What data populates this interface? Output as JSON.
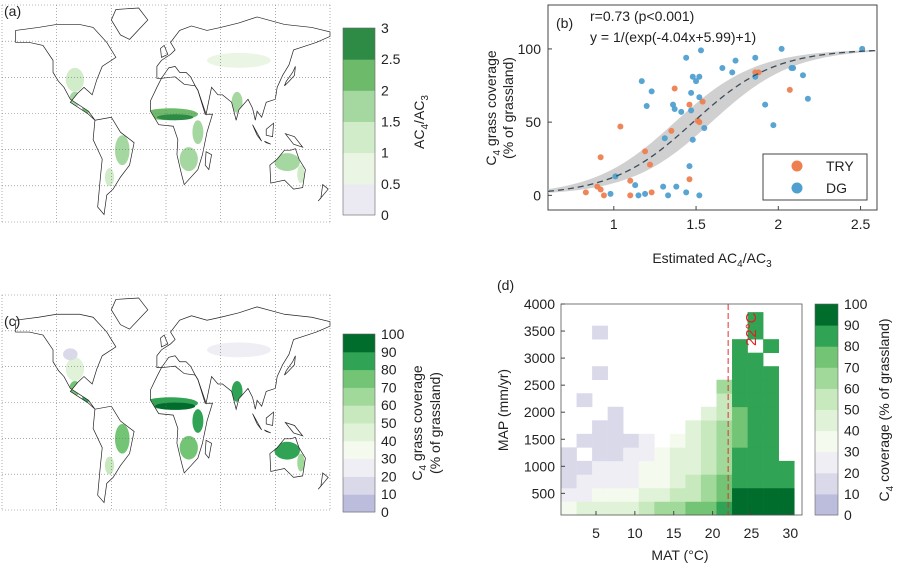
{
  "panels": {
    "a": {
      "tag": "(a)",
      "colorbar_label": {
        "p1": "AC",
        "s1": "4",
        "p2": "/AC",
        "s2": "3"
      }
    },
    "b": {
      "tag": "(b)",
      "stat": "r=0.73 (p<0.001)",
      "equation": "y = 1/(exp(-4.04x+5.99)+1)"
    },
    "c": {
      "tag": "(c)",
      "colorbar_label_1": {
        "pre": "C",
        "sub": "4",
        "post": " grass coverage"
      },
      "colorbar_label_2": "(% of grassland)"
    },
    "d": {
      "tag": "(d)",
      "threshold_label": "22°C"
    }
  },
  "chart_data": [
    {
      "id": "a",
      "type": "heatmap",
      "title": "",
      "description_kind": "map",
      "colorbar": {
        "ticks": [
          "0",
          "0.5",
          "1",
          "1.5",
          "2",
          "2.5",
          "3"
        ],
        "range": [
          0,
          3
        ],
        "colors": [
          "#ebeaf3",
          "#eaf5e4",
          "#d0ecc8",
          "#a5d8a0",
          "#6dbb6a",
          "#2e8b46"
        ]
      }
    },
    {
      "id": "b",
      "type": "scatter",
      "xlabel": {
        "p1": "Estimated AC",
        "s1": "4",
        "p2": "/AC",
        "s2": "3"
      },
      "ylabel_1": {
        "pre": "C",
        "sub": "4",
        "post": " grass coverage"
      },
      "ylabel_2": "(% of grassland)",
      "xlim": [
        0.6,
        2.6
      ],
      "ylim": [
        -10,
        130
      ],
      "xticks": [
        "1",
        "1.5",
        "2",
        "2.5"
      ],
      "xtick_values": [
        1,
        1.5,
        2,
        2.5
      ],
      "yticks": [
        "0",
        "50",
        "100"
      ],
      "ytick_values": [
        0,
        50,
        100
      ],
      "legend": {
        "placement": "bottom-right",
        "entries": [
          "TRY",
          "DG"
        ]
      },
      "fit": {
        "a": -4.04,
        "b": 5.99,
        "scale": 100
      },
      "series": [
        {
          "name": "TRY",
          "color": "#ee8050",
          "points": [
            [
              0.83,
              2
            ],
            [
              0.92,
              26
            ],
            [
              0.9,
              6
            ],
            [
              0.92,
              4
            ],
            [
              0.94,
              0
            ],
            [
              1.04,
              47
            ],
            [
              1.1,
              0
            ],
            [
              1.1,
              10
            ],
            [
              1.19,
              30
            ],
            [
              1.22,
              21
            ],
            [
              1.23,
              2
            ],
            [
              1.35,
              44
            ],
            [
              1.37,
              73
            ],
            [
              1.46,
              62
            ],
            [
              1.46,
              11
            ],
            [
              1.51,
              51
            ],
            [
              1.52,
              50
            ],
            [
              1.54,
              64
            ],
            [
              1.86,
              84
            ],
            [
              1.88,
              84
            ],
            [
              2.07,
              72
            ]
          ]
        },
        {
          "name": "DG",
          "color": "#4f9fd0",
          "points": [
            [
              0.98,
              1
            ],
            [
              1.01,
              13
            ],
            [
              1.13,
              7
            ],
            [
              1.15,
              0
            ],
            [
              1.17,
              78
            ],
            [
              1.19,
              1
            ],
            [
              1.2,
              61
            ],
            [
              1.23,
              71
            ],
            [
              1.3,
              6
            ],
            [
              1.31,
              39
            ],
            [
              1.33,
              0
            ],
            [
              1.38,
              6
            ],
            [
              1.37,
              59
            ],
            [
              1.36,
              62
            ],
            [
              1.41,
              57
            ],
            [
              1.44,
              2
            ],
            [
              1.44,
              94
            ],
            [
              1.46,
              20
            ],
            [
              1.47,
              58
            ],
            [
              1.47,
              70
            ],
            [
              1.48,
              81
            ],
            [
              1.48,
              38
            ],
            [
              1.5,
              78
            ],
            [
              1.52,
              81
            ],
            [
              1.52,
              0
            ],
            [
              1.52,
              67
            ],
            [
              1.53,
              99
            ],
            [
              1.55,
              46
            ],
            [
              1.66,
              87
            ],
            [
              1.72,
              84
            ],
            [
              1.74,
              92
            ],
            [
              1.86,
              94
            ],
            [
              1.86,
              81
            ],
            [
              1.92,
              62
            ],
            [
              1.97,
              48
            ],
            [
              2.02,
              100
            ],
            [
              2.08,
              87
            ],
            [
              2.09,
              87
            ],
            [
              2.15,
              82
            ],
            [
              2.18,
              66
            ],
            [
              2.51,
              100
            ]
          ]
        }
      ]
    },
    {
      "id": "c",
      "type": "heatmap",
      "description_kind": "map",
      "colorbar": {
        "ticks": [
          "0",
          "10",
          "20",
          "30",
          "40",
          "50",
          "60",
          "70",
          "80",
          "90",
          "100"
        ],
        "range": [
          0,
          100
        ],
        "colors": [
          "#bcbddc",
          "#d9d9ea",
          "#eeeef4",
          "#f5faef",
          "#e0f2d8",
          "#c7e9bd",
          "#a1d99b",
          "#74c476",
          "#31a354",
          "#006d2c"
        ]
      }
    },
    {
      "id": "d",
      "type": "heatmap",
      "xlabel": "MAT (°C)",
      "ylabel": "MAP (mm/yr)",
      "xlim": [
        0.5,
        31.5
      ],
      "ylim": [
        100,
        4000
      ],
      "xticks": [
        "5",
        "10",
        "15",
        "20",
        "25",
        "30"
      ],
      "xtick_values": [
        5,
        10,
        15,
        20,
        25,
        30
      ],
      "yticks": [
        "500",
        "1000",
        "1500",
        "2000",
        "2500",
        "3000",
        "3500",
        "4000"
      ],
      "ytick_values": [
        500,
        1000,
        1500,
        2000,
        2500,
        3000,
        3500,
        4000
      ],
      "threshold_x": 22,
      "colorbar": {
        "label": {
          "pre": "C",
          "sub": "4",
          "post": " coverage (% of grassland)"
        },
        "ticks": [
          "0",
          "10",
          "20",
          "30",
          "40",
          "50",
          "60",
          "70",
          "80",
          "90",
          "100"
        ],
        "range": [
          0,
          100
        ]
      },
      "x_bins": {
        "start": 0.5,
        "step": 2
      },
      "y_bins": {
        "start": 100,
        "step": 250
      },
      "values": [
        [
          30,
          45,
          45,
          40,
          40,
          50,
          60,
          65,
          70,
          75,
          85,
          95,
          95,
          98,
          98,
          null
        ],
        [
          20,
          25,
          30,
          30,
          35,
          40,
          45,
          50,
          55,
          65,
          75,
          90,
          90,
          95,
          95,
          null
        ],
        [
          15,
          20,
          25,
          25,
          25,
          30,
          35,
          40,
          50,
          60,
          70,
          85,
          85,
          88,
          85,
          null
        ],
        [
          15,
          15,
          20,
          20,
          25,
          30,
          35,
          40,
          45,
          55,
          65,
          80,
          85,
          85,
          80,
          null
        ],
        [
          15,
          null,
          15,
          15,
          20,
          25,
          30,
          40,
          45,
          55,
          65,
          80,
          85,
          85,
          null,
          null
        ],
        [
          null,
          15,
          15,
          15,
          15,
          20,
          null,
          35,
          45,
          50,
          60,
          75,
          85,
          85,
          null,
          null
        ],
        [
          null,
          null,
          15,
          15,
          null,
          null,
          null,
          null,
          40,
          50,
          60,
          75,
          85,
          85,
          null,
          null
        ],
        [
          null,
          null,
          null,
          15,
          null,
          null,
          null,
          null,
          null,
          45,
          55,
          75,
          85,
          85,
          null,
          null
        ],
        [
          null,
          15,
          null,
          null,
          null,
          null,
          null,
          null,
          null,
          null,
          55,
          80,
          85,
          85,
          null,
          null
        ],
        [
          null,
          null,
          null,
          null,
          null,
          null,
          null,
          null,
          null,
          null,
          60,
          80,
          85,
          85,
          null,
          null
        ],
        [
          null,
          null,
          15,
          null,
          null,
          null,
          null,
          null,
          null,
          null,
          null,
          80,
          85,
          85,
          null,
          null
        ],
        [
          null,
          null,
          null,
          null,
          null,
          null,
          null,
          null,
          null,
          null,
          null,
          80,
          85,
          null,
          null,
          null
        ],
        [
          null,
          null,
          null,
          null,
          null,
          null,
          null,
          null,
          null,
          null,
          null,
          80,
          null,
          85,
          null,
          null
        ],
        [
          null,
          null,
          15,
          null,
          null,
          null,
          null,
          null,
          null,
          null,
          null,
          null,
          85,
          null,
          null,
          null
        ],
        [
          null,
          null,
          null,
          null,
          null,
          null,
          null,
          null,
          null,
          null,
          null,
          null,
          85,
          null,
          null,
          null
        ]
      ]
    }
  ]
}
